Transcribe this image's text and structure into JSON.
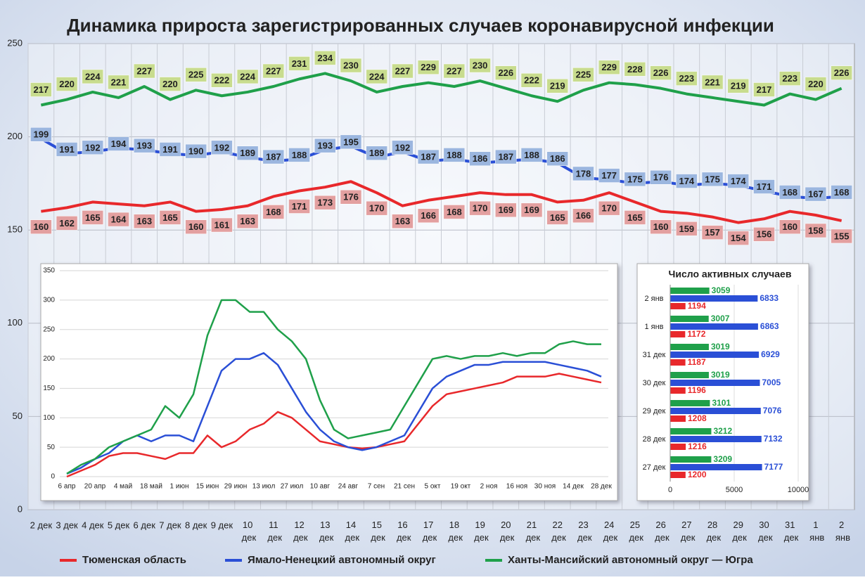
{
  "chart_data": [
    {
      "type": "line",
      "title": "Динамика прироста зарегистрированных случаев коронавирусной инфекции",
      "categories": [
        "2 дек",
        "3 дек",
        "4 дек",
        "5 дек",
        "6 дек",
        "7 дек",
        "8 дек",
        "9 дек",
        "10 дек",
        "11 дек",
        "12 дек",
        "13 дек",
        "14 дек",
        "15 дек",
        "16 дек",
        "17 дек",
        "18 дек",
        "19 дек",
        "20 дек",
        "21 дек",
        "22 дек",
        "23 дек",
        "24 дек",
        "25 дек",
        "26 дек",
        "27 дек",
        "28 дек",
        "29 дек",
        "30 дек",
        "31 дек",
        "1 янв",
        "2 янв"
      ],
      "series": [
        {
          "name": "Тюменская область",
          "color": "#e8282b",
          "label_color": "#e3a0a0",
          "values": [
            160,
            162,
            165,
            164,
            163,
            165,
            160,
            161,
            163,
            168,
            171,
            173,
            176,
            170,
            163,
            166,
            168,
            170,
            169,
            169,
            165,
            166,
            170,
            165,
            160,
            159,
            157,
            154,
            156,
            160,
            158,
            155
          ]
        },
        {
          "name": "Ямало-Ненецкий автономный округ",
          "color": "#2a4fd6",
          "label_color": "#9bb6df",
          "values": [
            199,
            191,
            192,
            194,
            193,
            191,
            190,
            192,
            189,
            187,
            188,
            193,
            195,
            189,
            192,
            187,
            188,
            186,
            187,
            188,
            186,
            178,
            177,
            175,
            176,
            174,
            175,
            174,
            171,
            168,
            167,
            168
          ]
        },
        {
          "name": "Ханты-Мансийский автономный округ — Югра",
          "color": "#1fa04a",
          "label_color": "#c8dc8e",
          "values": [
            217,
            220,
            224,
            221,
            227,
            220,
            225,
            222,
            224,
            227,
            231,
            234,
            230,
            224,
            227,
            229,
            227,
            230,
            226,
            222,
            219,
            225,
            229,
            228,
            226,
            223,
            221,
            219,
            217,
            223,
            220,
            226
          ]
        }
      ],
      "ylim": [
        0,
        250
      ],
      "yticks": [
        0,
        50,
        100,
        150,
        200,
        250
      ],
      "grid": true,
      "data_labels": true,
      "legend": "bottom"
    },
    {
      "type": "line",
      "categories": [
        "6 апр",
        null,
        "20 апр",
        null,
        "4 май",
        null,
        "18 май",
        null,
        "1 июн",
        null,
        "15 июн",
        null,
        "29 июн",
        null,
        "13 июл",
        null,
        "27 июл",
        null,
        "10 авг",
        null,
        "24 авг",
        null,
        "7 сен",
        null,
        "21 сен",
        null,
        "5 окт",
        null,
        "19 окт",
        null,
        "2 ноя",
        null,
        "16 ноя",
        null,
        "30 ноя",
        null,
        "14 дек",
        null,
        "28 дек"
      ],
      "series": [
        {
          "color": "#e8282b",
          "values": [
            0,
            10,
            20,
            35,
            40,
            40,
            35,
            30,
            40,
            40,
            70,
            50,
            60,
            80,
            90,
            110,
            100,
            80,
            60,
            55,
            50,
            48,
            50,
            55,
            60,
            90,
            120,
            140,
            145,
            150,
            155,
            160,
            170,
            170,
            170,
            175,
            170,
            165,
            160
          ]
        },
        {
          "color": "#2a4fd6",
          "values": [
            5,
            15,
            30,
            40,
            60,
            70,
            60,
            70,
            70,
            60,
            120,
            180,
            200,
            200,
            210,
            190,
            150,
            110,
            80,
            60,
            50,
            45,
            50,
            60,
            70,
            110,
            150,
            170,
            180,
            190,
            190,
            195,
            195,
            195,
            195,
            190,
            185,
            180,
            170
          ]
        },
        {
          "color": "#1fa04a",
          "values": [
            5,
            20,
            30,
            50,
            60,
            70,
            80,
            120,
            100,
            140,
            240,
            300,
            300,
            280,
            280,
            250,
            230,
            200,
            130,
            80,
            65,
            70,
            75,
            80,
            120,
            160,
            200,
            205,
            200,
            205,
            205,
            210,
            205,
            210,
            210,
            225,
            230,
            225,
            225
          ]
        }
      ],
      "ylim": [
        0,
        350
      ],
      "yticks": [
        0,
        50,
        100,
        150,
        200,
        250,
        300,
        350
      ],
      "grid": true,
      "data_labels": false
    },
    {
      "type": "barh",
      "title": "Число активных случаев",
      "categories": [
        "2 янв",
        "1 янв",
        "31 дек",
        "30 дек",
        "29 дек",
        "28 дек",
        "27 дек"
      ],
      "series": [
        {
          "color": "#e8282b",
          "values": [
            1194,
            1172,
            1187,
            1196,
            1208,
            1216,
            1200
          ]
        },
        {
          "color": "#2a4fd6",
          "values": [
            6833,
            6863,
            6929,
            7005,
            7076,
            7132,
            7177
          ]
        },
        {
          "color": "#1fa04a",
          "values": [
            3059,
            3007,
            3019,
            3019,
            3101,
            3212,
            3209
          ]
        }
      ],
      "xlim": [
        0,
        10000
      ],
      "xticks": [
        0,
        5000,
        10000
      ],
      "grid": true,
      "data_labels": true
    }
  ]
}
